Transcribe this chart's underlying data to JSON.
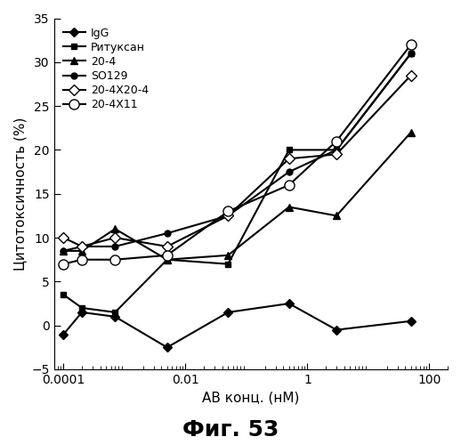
{
  "title": "Фиг. 53",
  "xlabel": "АВ конц. (нМ)",
  "ylabel": "Цитотоксичность (%)",
  "ylim": [
    -5,
    35
  ],
  "yticks": [
    -5,
    0,
    5,
    10,
    15,
    20,
    25,
    30,
    35
  ],
  "xlim_log": [
    -4,
    2
  ],
  "series": [
    {
      "label": "IgG",
      "x": [
        0.0001,
        0.0002,
        0.0007,
        0.005,
        0.05,
        0.5,
        3,
        50
      ],
      "y": [
        -1.0,
        1.5,
        1.0,
        -2.5,
        1.5,
        2.5,
        -0.5,
        0.5
      ],
      "color": "#000000",
      "marker": "D",
      "markerfacecolor": "#000000",
      "linestyle": "-",
      "markersize": 5,
      "linewidth": 1.5
    },
    {
      "label": "Ритуксан",
      "x": [
        0.0001,
        0.0002,
        0.0007,
        0.005,
        0.05,
        0.5,
        3,
        50
      ],
      "y": [
        3.5,
        2.0,
        1.5,
        7.5,
        7.0,
        20.0,
        20.0,
        31.0
      ],
      "color": "#000000",
      "marker": "s",
      "markerfacecolor": "#000000",
      "linestyle": "-",
      "markersize": 5,
      "linewidth": 1.5
    },
    {
      "label": "20-4",
      "x": [
        0.0001,
        0.0002,
        0.0007,
        0.005,
        0.05,
        0.5,
        3,
        50
      ],
      "y": [
        8.5,
        8.5,
        11.0,
        7.5,
        8.0,
        13.5,
        12.5,
        22.0
      ],
      "color": "#000000",
      "marker": "^",
      "markerfacecolor": "#000000",
      "linestyle": "-",
      "markersize": 6,
      "linewidth": 1.5
    },
    {
      "label": "SO129",
      "x": [
        0.0001,
        0.0002,
        0.0007,
        0.005,
        0.05,
        0.5,
        3,
        50
      ],
      "y": [
        8.5,
        9.0,
        9.0,
        10.5,
        12.5,
        17.5,
        20.0,
        31.0
      ],
      "color": "#000000",
      "marker": "o",
      "markerfacecolor": "#000000",
      "linestyle": "-",
      "markersize": 5,
      "linewidth": 1.5
    },
    {
      "label": "20-4X20-4",
      "x": [
        0.0001,
        0.0002,
        0.0007,
        0.005,
        0.05,
        0.5,
        3,
        50
      ],
      "y": [
        10.0,
        9.0,
        10.0,
        9.0,
        12.5,
        19.0,
        19.5,
        28.5
      ],
      "color": "#000000",
      "marker": "D",
      "markerfacecolor": "#ffffff",
      "linestyle": "-",
      "markersize": 6,
      "linewidth": 1.5
    },
    {
      "label": "20-4X11",
      "x": [
        0.0001,
        0.0002,
        0.0007,
        0.005,
        0.05,
        0.5,
        3,
        50
      ],
      "y": [
        7.0,
        7.5,
        7.5,
        8.0,
        13.0,
        16.0,
        21.0,
        32.0
      ],
      "color": "#000000",
      "marker": "o",
      "markerfacecolor": "#ffffff",
      "linestyle": "-",
      "markersize": 8,
      "linewidth": 1.5
    }
  ],
  "background_color": "#ffffff",
  "legend_fontsize": 9,
  "axis_fontsize": 11,
  "title_fontsize": 18,
  "tick_labelsize": 10
}
